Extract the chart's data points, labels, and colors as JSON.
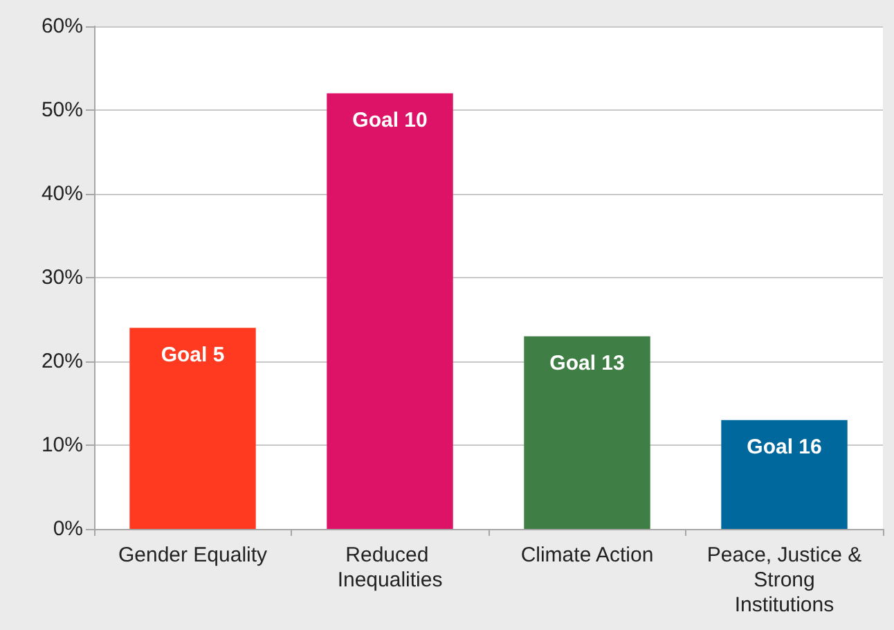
{
  "chart_data": {
    "type": "bar",
    "categories": [
      "Gender Equality",
      "Reduced Inequalities",
      "Climate Action",
      "Peace, Justice & Strong Institutions"
    ],
    "values": [
      24,
      52,
      23,
      13
    ],
    "colors": [
      "#ff3a21",
      "#dd1367",
      "#3f7e44",
      "#00689d"
    ],
    "value_labels": [
      "Goal 5",
      "Goal 10",
      "Goal 13",
      "Goal 16"
    ],
    "ylim": [
      0,
      60
    ],
    "yticks": [
      {
        "value": 0,
        "label": "0%"
      },
      {
        "value": 10,
        "label": "10%"
      },
      {
        "value": 20,
        "label": "20%"
      },
      {
        "value": 30,
        "label": "30%"
      },
      {
        "value": 40,
        "label": "40%"
      },
      {
        "value": 50,
        "label": "50%"
      },
      {
        "value": 60,
        "label": "60%"
      }
    ],
    "grid": "y"
  }
}
